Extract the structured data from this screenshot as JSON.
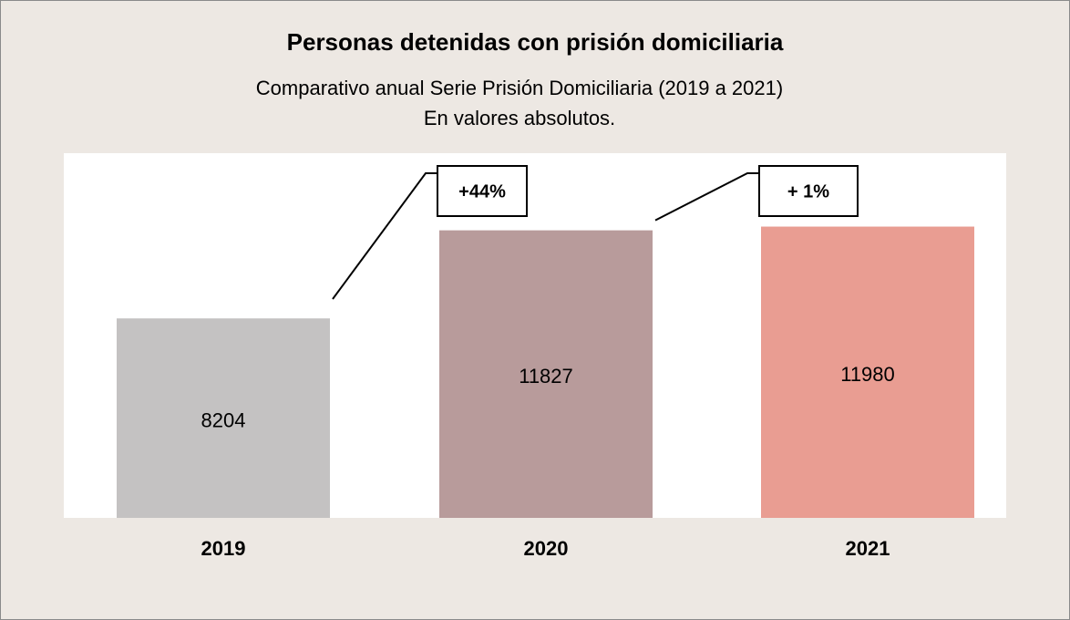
{
  "chart_data": {
    "type": "bar",
    "title": "Personas detenidas con prisión domiciliaria",
    "subtitle": [
      "Comparativo anual Serie Prisión Domiciliaria (2019 a 2021)",
      "En valores absolutos."
    ],
    "categories": [
      "2019",
      "2020",
      "2021"
    ],
    "values": [
      8204,
      11827,
      11980
    ],
    "colors": [
      "#c4c2c2",
      "#b89b9b",
      "#e99d92"
    ],
    "ylim": [
      0,
      15000
    ],
    "annotations": [
      "+44%",
      "+ 1%"
    ]
  }
}
